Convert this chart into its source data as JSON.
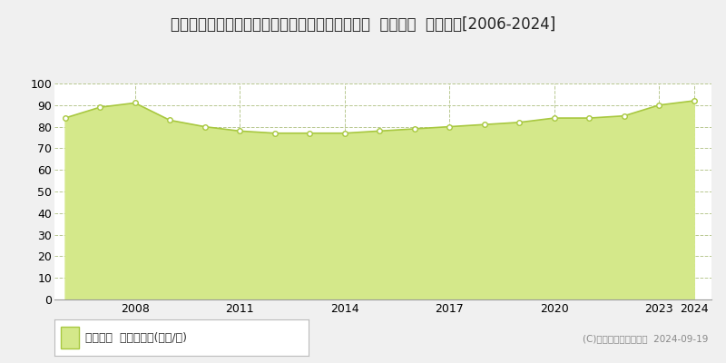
{
  "title": "埼玉県さいたま市中央区大戸６丁目８０６番７外  基準地価  地価推移[2006-2024]",
  "years": [
    2006,
    2007,
    2008,
    2009,
    2010,
    2011,
    2012,
    2013,
    2014,
    2015,
    2016,
    2017,
    2018,
    2019,
    2020,
    2021,
    2022,
    2023,
    2024
  ],
  "values": [
    84,
    89,
    91,
    83,
    80,
    78,
    77,
    77,
    77,
    78,
    79,
    80,
    81,
    82,
    84,
    84,
    85,
    90,
    92
  ],
  "line_color": "#a8c840",
  "fill_color": "#d4e88a",
  "fill_alpha": 1.0,
  "marker_color": "white",
  "marker_edge_color": "#a8c840",
  "bg_color": "#f0f0f0",
  "plot_bg_color": "#ffffff",
  "grid_color": "#b8c890",
  "ylim": [
    0,
    100
  ],
  "yticks": [
    0,
    10,
    20,
    30,
    40,
    50,
    60,
    70,
    80,
    90,
    100
  ],
  "xtick_positions": [
    2008,
    2011,
    2014,
    2017,
    2020,
    2023,
    2024
  ],
  "legend_label": "基準地価  平均坪単価(万円/坪)",
  "copyright_text": "(C)土地価格ドットコム  2024-09-19",
  "title_fontsize": 12,
  "axis_fontsize": 9,
  "legend_fontsize": 9
}
